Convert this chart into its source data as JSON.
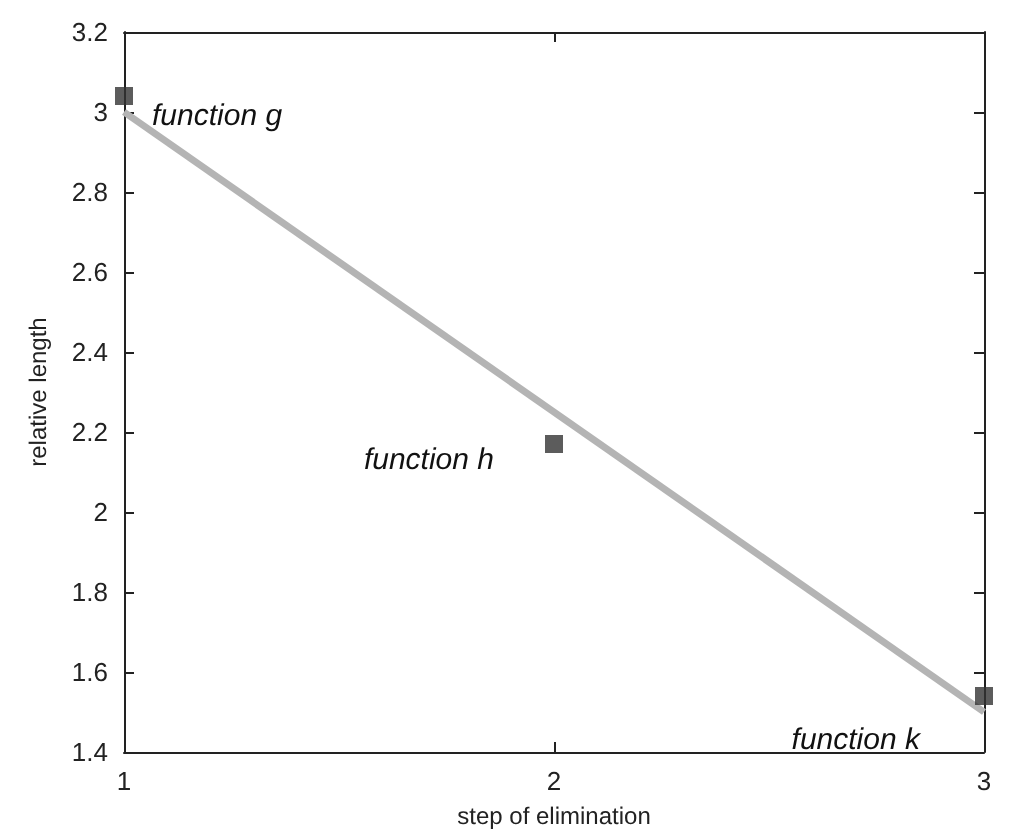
{
  "chart_data": {
    "type": "scatter",
    "xlabel": "step of elimination",
    "ylabel": "relative length",
    "series": [
      {
        "color": "#333333",
        "x": [
          1,
          2,
          3
        ],
        "values": [
          3.04,
          2.17,
          1.54
        ],
        "marker": "square"
      },
      {
        "type": "line",
        "color": "#b4b4b4",
        "x": [
          1,
          3
        ],
        "values": [
          3.0,
          1.5
        ],
        "marker": "none"
      }
    ],
    "xlim": [
      1,
      3
    ],
    "xticks": [
      1,
      2,
      3
    ],
    "ylim": [
      1.4,
      3.2
    ],
    "yticks": [
      1.4,
      1.6,
      1.8,
      2,
      2.2,
      2.4,
      2.6,
      2.8,
      3,
      3.2
    ],
    "annotations": [
      {
        "text": "function g",
        "x": 1,
        "y": 3.04
      },
      {
        "text": "function h",
        "x": 2,
        "y": 2.17
      },
      {
        "text": "function k",
        "x": 3,
        "y": 1.54
      }
    ],
    "grid": false
  }
}
